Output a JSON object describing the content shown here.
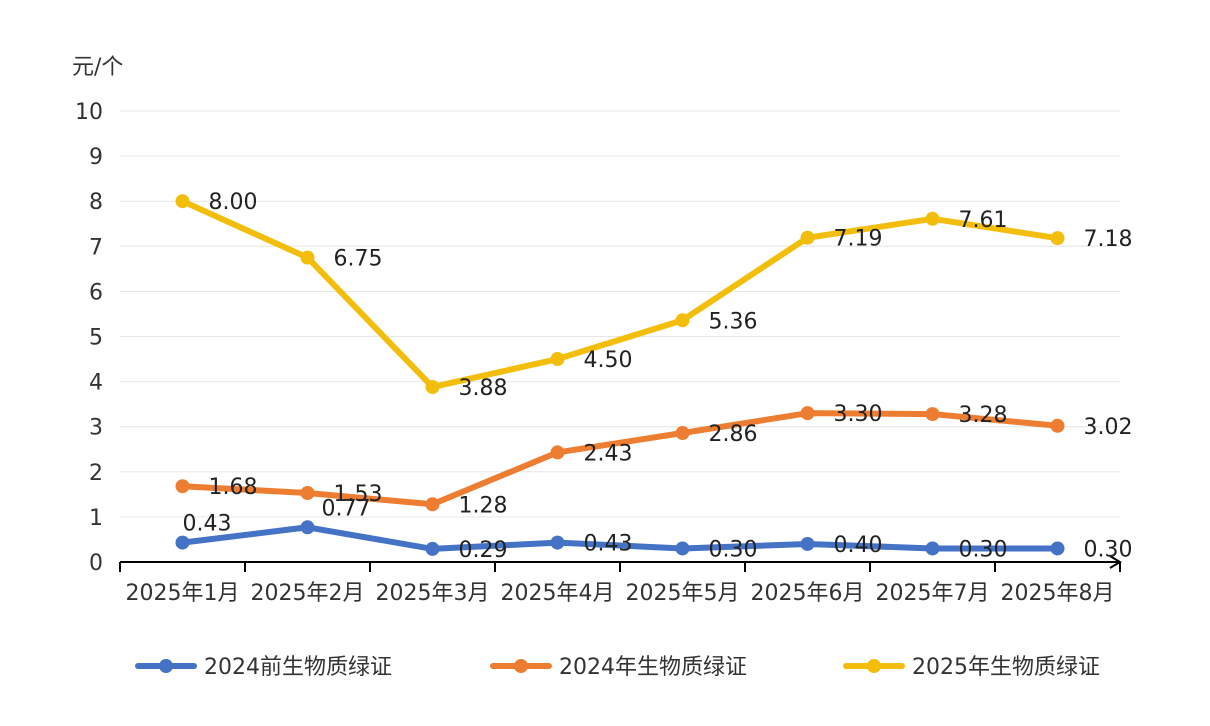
{
  "chart_data": {
    "type": "line",
    "title": "",
    "ylabel": "元/个",
    "xlabel": "",
    "ylim": [
      0,
      10
    ],
    "yticks": [
      0,
      1,
      2,
      3,
      4,
      5,
      6,
      7,
      8,
      9,
      10
    ],
    "grid": true,
    "legend_position": "bottom",
    "categories": [
      "2025年1月",
      "2025年2月",
      "2025年3月",
      "2025年4月",
      "2025年5月",
      "2025年6月",
      "2025年7月",
      "2025年8月"
    ],
    "series": [
      {
        "name": "2024前生物质绿证",
        "color": "#4472C4",
        "values": [
          0.43,
          0.77,
          0.29,
          0.43,
          0.3,
          0.4,
          0.3,
          0.3
        ],
        "labels": [
          "0.43",
          "0.77",
          "0.29",
          "0.43",
          "0.30",
          "0.40",
          "0.30",
          "0.30"
        ]
      },
      {
        "name": "2024年生物质绿证",
        "color": "#ED7D31",
        "values": [
          1.68,
          1.53,
          1.28,
          2.43,
          2.86,
          3.3,
          3.28,
          3.02
        ],
        "labels": [
          "1.68",
          "1.53",
          "1.28",
          "2.43",
          "2.86",
          "3.30",
          "3.28",
          "3.02"
        ]
      },
      {
        "name": "2025年生物质绿证",
        "color": "#F2BE0B",
        "values": [
          8.0,
          6.75,
          3.88,
          4.5,
          5.36,
          7.19,
          7.61,
          7.18
        ],
        "labels": [
          "8.00",
          "6.75",
          "3.88",
          "4.50",
          "5.36",
          "7.19",
          "7.61",
          "7.18"
        ]
      }
    ]
  }
}
